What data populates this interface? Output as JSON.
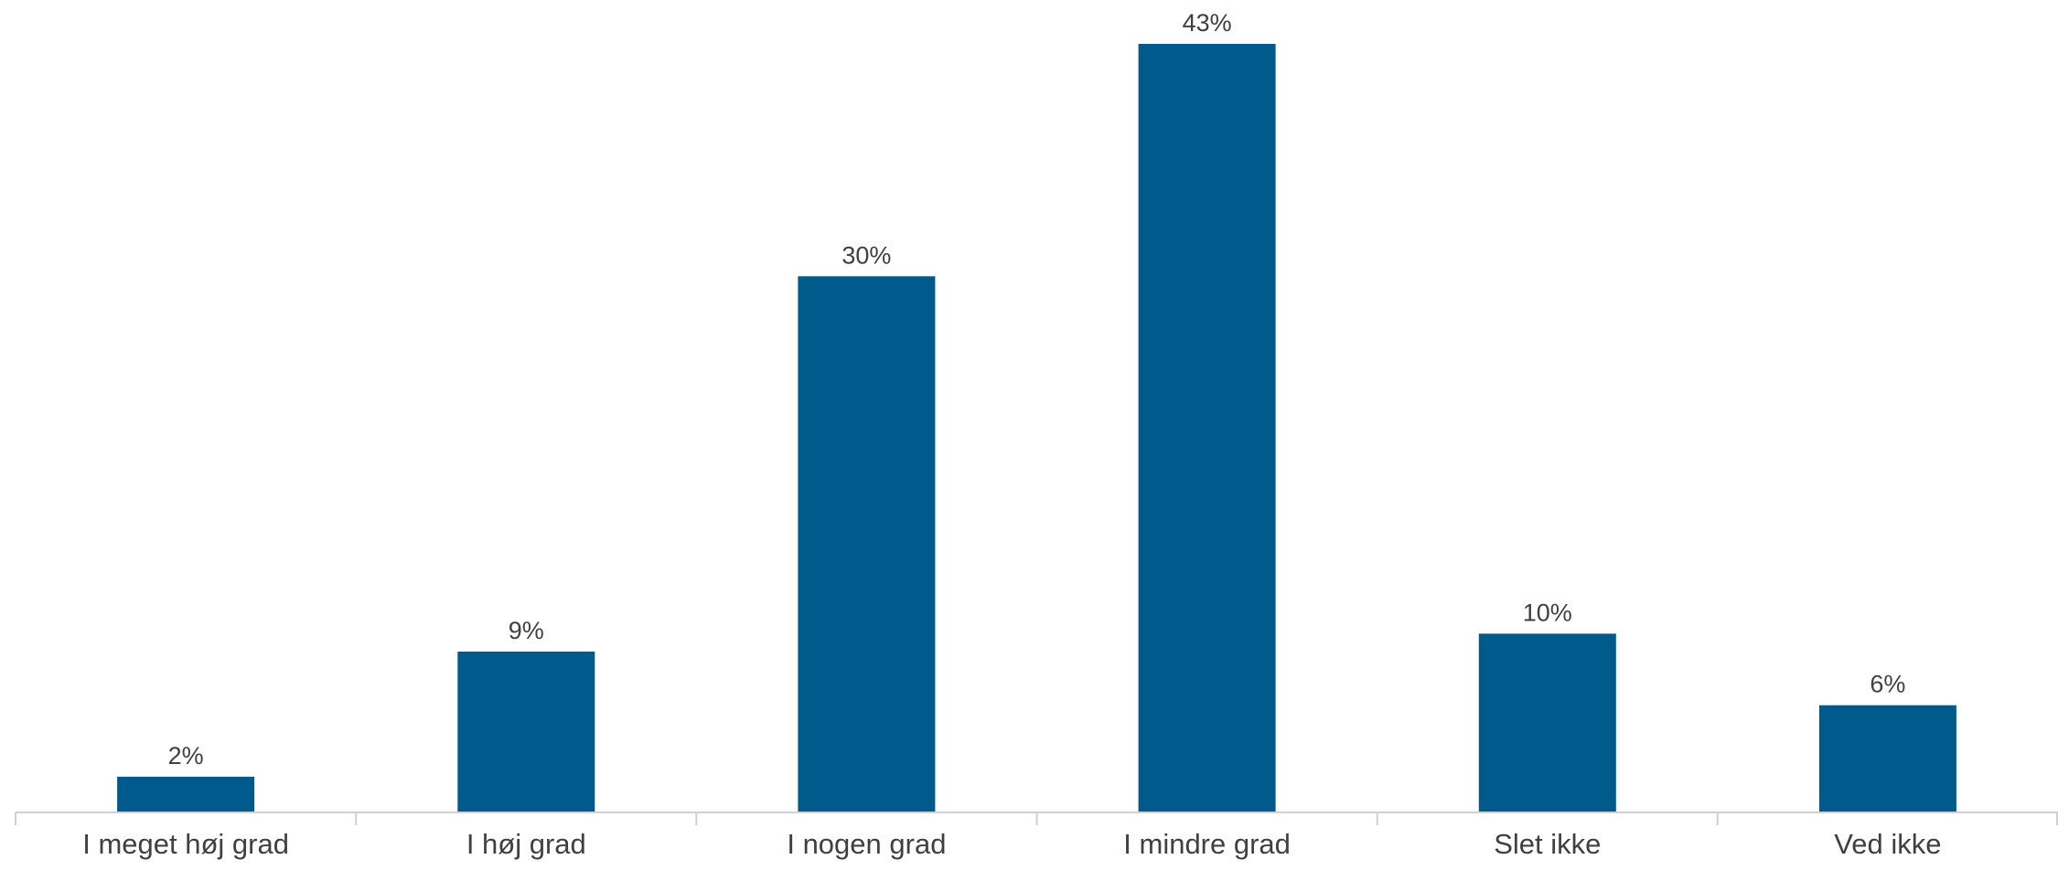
{
  "colors": {
    "bar": "#005A8B",
    "axis": "#d0d0d0",
    "text": "#404040"
  },
  "chart_data": {
    "type": "bar",
    "title": "",
    "xlabel": "",
    "ylabel": "",
    "ylim": [
      0,
      43
    ],
    "grid": false,
    "categories": [
      "I meget høj grad",
      "I høj grad",
      "I nogen grad",
      "I mindre grad",
      "Slet ikke",
      "Ved ikke"
    ],
    "values": [
      2,
      9,
      30,
      43,
      10,
      6
    ],
    "data_labels": [
      "2%",
      "9%",
      "30%",
      "43%",
      "10%",
      "6%"
    ]
  }
}
